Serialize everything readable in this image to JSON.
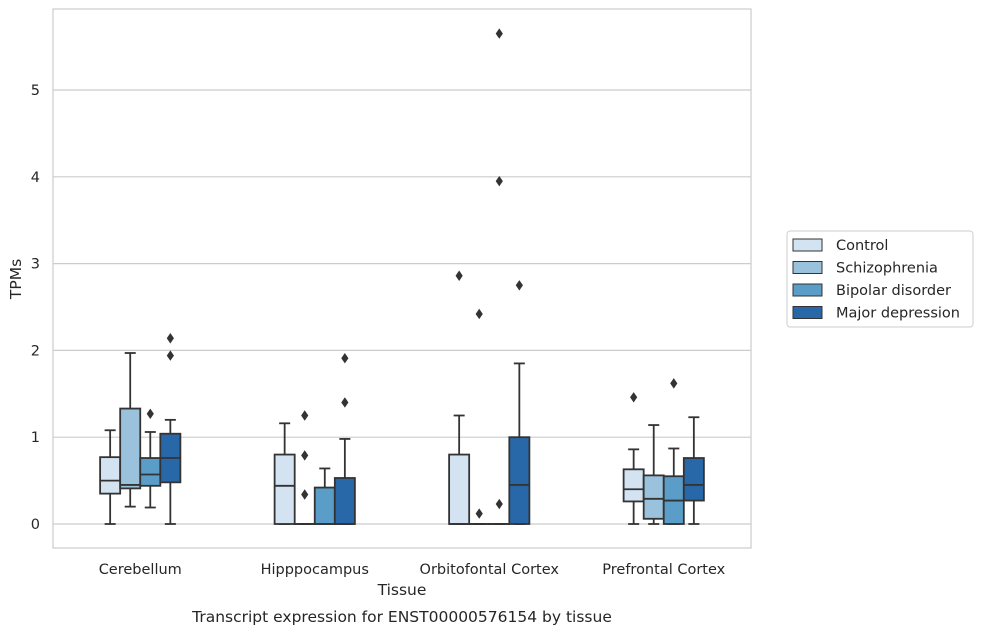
{
  "chart_data": {
    "type": "box",
    "title": "Transcript expression for ENST00000576154 by tissue",
    "xlabel": "Tissue",
    "ylabel": "TPMs",
    "ylim": [
      -0.28,
      5.95
    ],
    "yticks": [
      0,
      1,
      2,
      3,
      4,
      5
    ],
    "grid": "horizontal",
    "legend_position": "right",
    "categories": [
      "Cerebellum",
      "Hipppocampus",
      "Orbitofontal Cortex",
      "Prefrontal Cortex"
    ],
    "series": [
      {
        "name": "Control",
        "color": "#d3e3f2",
        "boxes": [
          {
            "whislo": 0.0,
            "q1": 0.35,
            "med": 0.5,
            "q3": 0.77,
            "whishi": 1.08,
            "fliers": []
          },
          {
            "whislo": 0.0,
            "q1": 0.0,
            "med": 0.44,
            "q3": 0.8,
            "whishi": 1.16,
            "fliers": []
          },
          {
            "whislo": 0.0,
            "q1": 0.0,
            "med": 0.0,
            "q3": 0.8,
            "whishi": 1.25,
            "fliers": [
              2.86
            ]
          },
          {
            "whislo": 0.0,
            "q1": 0.26,
            "med": 0.4,
            "q3": 0.63,
            "whishi": 0.86,
            "fliers": [
              1.46
            ]
          }
        ]
      },
      {
        "name": "Schizophrenia",
        "color": "#9ac2dc",
        "boxes": [
          {
            "whislo": 0.2,
            "q1": 0.41,
            "med": 0.45,
            "q3": 1.33,
            "whishi": 1.97,
            "fliers": []
          },
          {
            "whislo": 0.0,
            "q1": 0.0,
            "med": 0.0,
            "q3": 0.0,
            "whishi": 0.0,
            "fliers": [
              0.34,
              0.79,
              1.25
            ]
          },
          {
            "whislo": 0.0,
            "q1": 0.0,
            "med": 0.0,
            "q3": 0.0,
            "whishi": 0.0,
            "fliers": [
              0.12,
              2.42
            ]
          },
          {
            "whislo": 0.0,
            "q1": 0.06,
            "med": 0.29,
            "q3": 0.56,
            "whishi": 1.14,
            "fliers": []
          }
        ]
      },
      {
        "name": "Bipolar disorder",
        "color": "#5a9dc8",
        "boxes": [
          {
            "whislo": 0.19,
            "q1": 0.44,
            "med": 0.57,
            "q3": 0.76,
            "whishi": 1.06,
            "fliers": [
              1.27
            ]
          },
          {
            "whislo": 0.0,
            "q1": 0.0,
            "med": 0.0,
            "q3": 0.42,
            "whishi": 0.64,
            "fliers": []
          },
          {
            "whislo": 0.0,
            "q1": 0.0,
            "med": 0.0,
            "q3": 0.0,
            "whishi": 0.0,
            "fliers": [
              0.23,
              3.95,
              5.65
            ]
          },
          {
            "whislo": 0.0,
            "q1": 0.0,
            "med": 0.27,
            "q3": 0.55,
            "whishi": 0.87,
            "fliers": [
              1.62
            ]
          }
        ]
      },
      {
        "name": "Major depression",
        "color": "#2968a8",
        "boxes": [
          {
            "whislo": 0.0,
            "q1": 0.48,
            "med": 0.76,
            "q3": 1.04,
            "whishi": 1.2,
            "fliers": [
              1.94,
              2.14
            ]
          },
          {
            "whislo": 0.0,
            "q1": 0.0,
            "med": 0.0,
            "q3": 0.53,
            "whishi": 0.98,
            "fliers": [
              1.4,
              1.91
            ]
          },
          {
            "whislo": 0.0,
            "q1": 0.0,
            "med": 0.45,
            "q3": 1.0,
            "whishi": 1.85,
            "fliers": [
              2.75
            ]
          },
          {
            "whislo": 0.0,
            "q1": 0.27,
            "med": 0.45,
            "q3": 0.76,
            "whishi": 1.23,
            "fliers": []
          }
        ]
      }
    ]
  }
}
